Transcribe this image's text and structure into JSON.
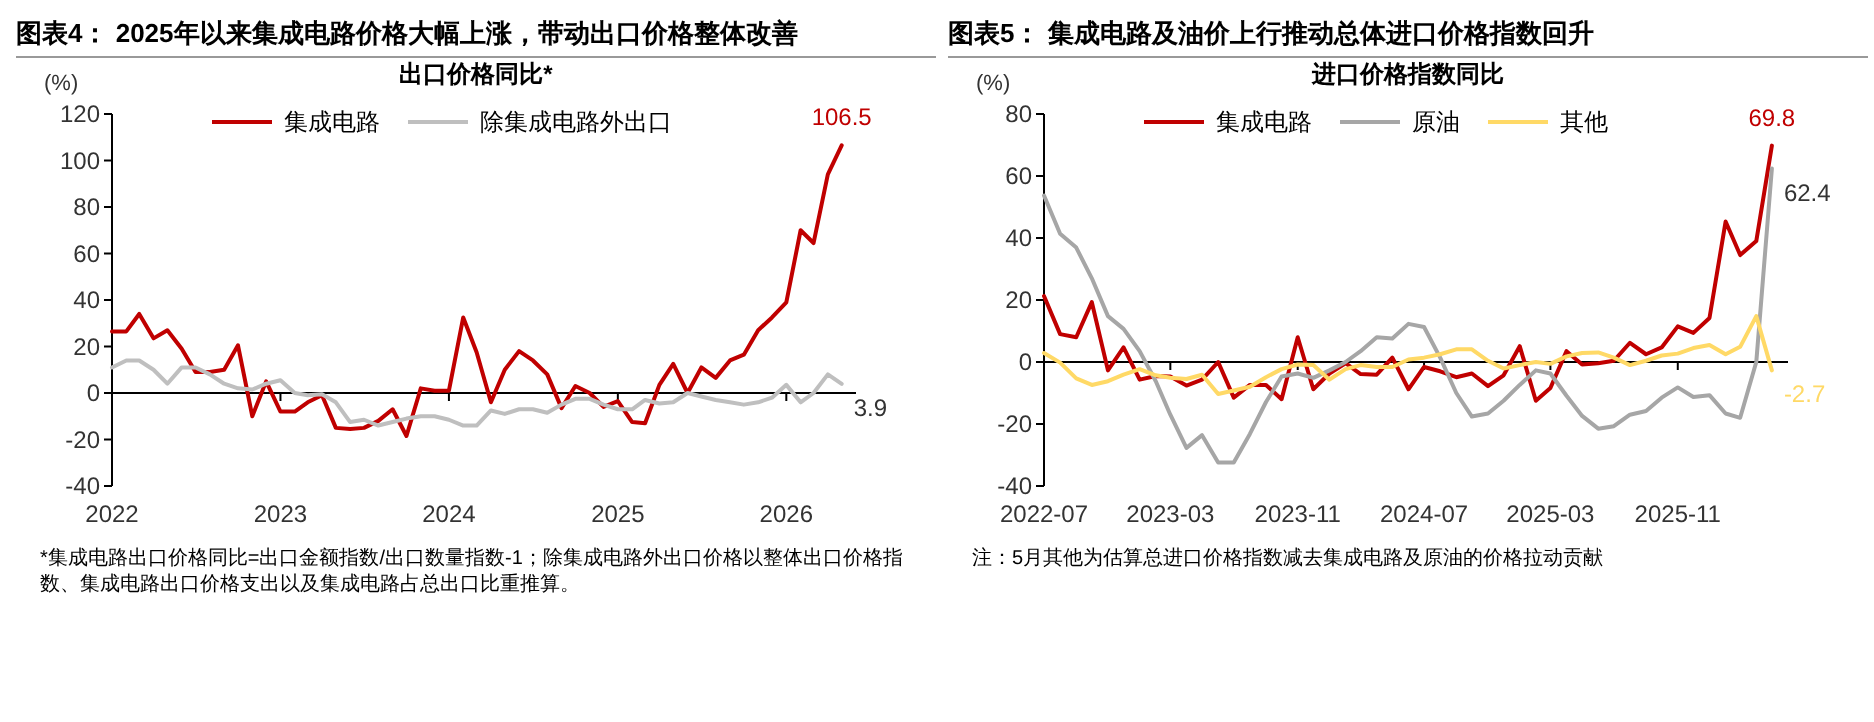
{
  "chart_data": [
    {
      "type": "line",
      "title": "图表4： 2025年以来集成电路价格大幅上涨，带动出口价格整体改善",
      "subtitle": "出口价格同比*",
      "ylabel": "(%)",
      "x": [
        "2022-01",
        "2022-02",
        "2022-03",
        "2022-04",
        "2022-05",
        "2022-06",
        "2022-07",
        "2022-08",
        "2022-09",
        "2022-10",
        "2022-11",
        "2022-12",
        "2023-01",
        "2023-02",
        "2023-03",
        "2023-04",
        "2023-05",
        "2023-06",
        "2023-07",
        "2023-08",
        "2023-09",
        "2023-10",
        "2023-11",
        "2023-12",
        "2024-01",
        "2024-02",
        "2024-03",
        "2024-04",
        "2024-05",
        "2024-06",
        "2024-07",
        "2024-08",
        "2024-09",
        "2024-10",
        "2024-11",
        "2024-12",
        "2025-01",
        "2025-02",
        "2025-03",
        "2025-04",
        "2025-05",
        "2025-06",
        "2025-07",
        "2025-08",
        "2025-09",
        "2025-10",
        "2025-11",
        "2025-12",
        "2026-01",
        "2026-02",
        "2026-03",
        "2026-04",
        "2026-05"
      ],
      "series": [
        {
          "name": "集成电路",
          "color": "#c00000",
          "values": [
            26.5,
            26.5,
            34,
            23.5,
            27,
            19,
            9,
            9,
            10,
            20.5,
            -10,
            5,
            -8,
            -8,
            -4,
            -1,
            -15,
            -15.5,
            -15,
            -12,
            -7,
            -18.5,
            2,
            1,
            1,
            32.5,
            17.5,
            -4,
            10,
            18,
            14,
            8,
            -6.5,
            3,
            0,
            -6,
            -3.5,
            -12.5,
            -13,
            3.5,
            12.5,
            0,
            11,
            6.5,
            14,
            16.5,
            27,
            32.5,
            39,
            70,
            64.5,
            94,
            106.5
          ]
        },
        {
          "name": "除集成电路外出口",
          "color": "#bfbfbf",
          "values": [
            11,
            14,
            14,
            10,
            4,
            11,
            11,
            8,
            4,
            2,
            1.5,
            4,
            5.5,
            0,
            -1,
            -0.5,
            -4,
            -12.5,
            -11.5,
            -14,
            -12.5,
            -11,
            -10,
            -10,
            -11.5,
            -14,
            -14,
            -7.5,
            -9,
            -7,
            -7,
            -8.5,
            -5,
            -2.5,
            -2.5,
            -5,
            -7,
            -7,
            -3,
            -4.5,
            -4,
            0,
            -1.5,
            -3,
            -4,
            -5,
            -4,
            -2,
            3.5,
            -4,
            0,
            8,
            3.9
          ]
        }
      ],
      "xlim": [
        "2022-01",
        "2026-06"
      ],
      "xticks": [
        "2022",
        "2023",
        "2024",
        "2025",
        "2026"
      ],
      "ylim": [
        -40,
        120
      ],
      "yticks": [
        -40,
        -20,
        0,
        20,
        40,
        60,
        80,
        100,
        120
      ],
      "legend": "top",
      "ref_lines": [
        {
          "axis": "y",
          "value": 0,
          "color": "#000000"
        }
      ],
      "annotations": [
        {
          "text": "106.5",
          "x": "2026-05",
          "y": 106.5
        },
        {
          "text": "3.9",
          "x": "2026-05",
          "y": 3.9
        },
        "*集成电路出口价格同比=出口金额指数/出口数量指数-1；除集成电路外出口价格以整体出口价格指数、集成电路出口价格支出以及集成电路占总出口比重推算。"
      ]
    },
    {
      "type": "line",
      "title": "图表5： 集成电路及油价上行推动总体进口价格指数回升",
      "subtitle": "进口价格指数同比",
      "ylabel": "(%)",
      "x": [
        "2022-07",
        "2022-08",
        "2022-09",
        "2022-10",
        "2022-11",
        "2022-12",
        "2023-01",
        "2023-02",
        "2023-03",
        "2023-04",
        "2023-05",
        "2023-06",
        "2023-07",
        "2023-08",
        "2023-09",
        "2023-10",
        "2023-11",
        "2023-12",
        "2024-01",
        "2024-02",
        "2024-03",
        "2024-04",
        "2024-05",
        "2024-06",
        "2024-07",
        "2024-08",
        "2024-09",
        "2024-10",
        "2024-11",
        "2024-12",
        "2025-01",
        "2025-02",
        "2025-03",
        "2025-04",
        "2025-05",
        "2025-06",
        "2025-07",
        "2025-08",
        "2025-09",
        "2025-10",
        "2025-11",
        "2025-12",
        "2026-01",
        "2026-02",
        "2026-03",
        "2026-04",
        "2026-05"
      ],
      "series": [
        {
          "name": "集成电路",
          "color": "#c00000",
          "values": [
            21.3,
            9,
            8,
            19.3,
            -2.7,
            4.7,
            -5.7,
            -4.5,
            -4.7,
            -7.6,
            -5.7,
            0,
            -11.5,
            -7.4,
            -7.4,
            -12,
            8,
            -8.8,
            -3.7,
            -0.4,
            -3.9,
            -4.1,
            1.4,
            -8.8,
            -1.6,
            -3,
            -4.9,
            -3.7,
            -7.8,
            -4.3,
            5.1,
            -12.5,
            -8.4,
            3.5,
            -0.8,
            -0.4,
            0.4,
            6.2,
            2.5,
            4.7,
            11.5,
            9.4,
            14.2,
            45.3,
            34.5,
            39,
            69.8
          ]
        },
        {
          "name": "原油",
          "color": "#a6a6a6",
          "values": [
            53.7,
            41.4,
            36.9,
            27,
            14.8,
            10.7,
            3.5,
            -6.2,
            -17,
            -27.7,
            -23.6,
            -32.4,
            -32.4,
            -23.2,
            -12.9,
            -4.7,
            -3.7,
            -5.1,
            -2.7,
            0,
            3.5,
            8,
            7.6,
            12.3,
            11.3,
            1.4,
            -10,
            -17.6,
            -16.6,
            -12.5,
            -7.4,
            -2.7,
            -3.7,
            -10.9,
            -17.4,
            -21.5,
            -20.7,
            -17,
            -15.8,
            -11.5,
            -8.2,
            -11.3,
            -10.7,
            -16.6,
            -18,
            0,
            62.4
          ]
        },
        {
          "name": "其他",
          "color": "#ffd966",
          "values": [
            2.9,
            -0.2,
            -5.3,
            -7.4,
            -6.2,
            -4.1,
            -2.3,
            -4.3,
            -5.1,
            -5.5,
            -4.1,
            -10.3,
            -9.2,
            -8,
            -4.9,
            -2.3,
            -0.8,
            -1,
            -5.7,
            -2.3,
            -1,
            -1.6,
            -1.6,
            0.8,
            1.4,
            2.5,
            4.1,
            4.1,
            0.4,
            -2.1,
            -1,
            0,
            -0.6,
            1.8,
            2.9,
            3.1,
            1.4,
            -1,
            0.4,
            2.1,
            2.7,
            4.5,
            5.5,
            2.5,
            4.9,
            14.8,
            -2.7
          ]
        }
      ],
      "xlim": [
        "2022-07",
        "2026-06"
      ],
      "xticks": [
        "2022-07",
        "2023-03",
        "2023-11",
        "2024-07",
        "2025-03",
        "2025-11"
      ],
      "ylim": [
        -40,
        80
      ],
      "yticks": [
        -40,
        -20,
        0,
        20,
        40,
        60,
        80
      ],
      "legend": "top",
      "ref_lines": [
        {
          "axis": "y",
          "value": 0,
          "color": "#000000"
        }
      ],
      "annotations": [
        {
          "text": "69.8",
          "x": "2026-05",
          "y": 69.8
        },
        {
          "text": "62.4",
          "x": "2026-05",
          "y": 62.4
        },
        {
          "text": "-2.7",
          "x": "2026-05",
          "y": -2.7
        },
        "注：5月其他为估算总进口价格指数减去集成电路及原油的价格拉动贡献"
      ]
    }
  ]
}
